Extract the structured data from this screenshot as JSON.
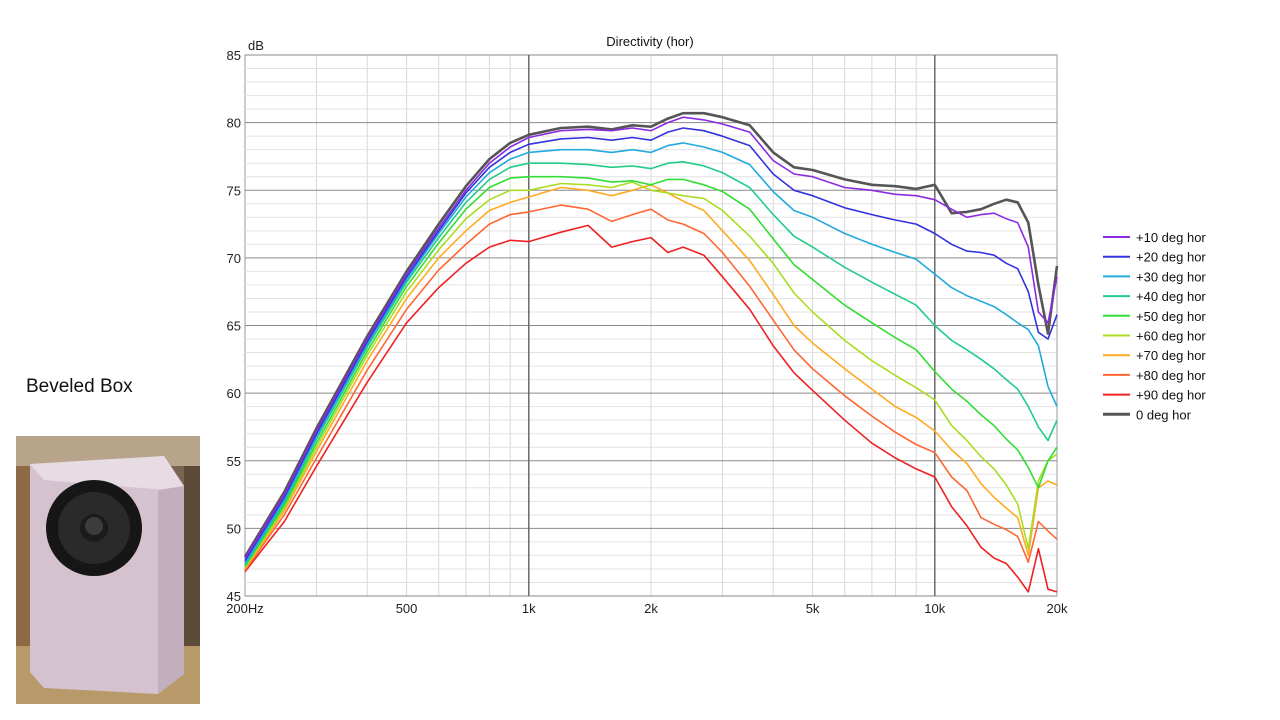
{
  "caption": "Beveled Box",
  "photo": {
    "icon": "beveled-speaker-box-photo",
    "box_color": "#d8c8d4"
  },
  "chart_data": {
    "type": "line",
    "title": "Directivity (hor)",
    "ylabel": "dB",
    "xlabel": "",
    "xscale": "log",
    "xlim": [
      200,
      20000
    ],
    "ylim": [
      45,
      85
    ],
    "grid": true,
    "legend_position": "right",
    "x_ticks": [
      {
        "value": 200,
        "label": "200Hz"
      },
      {
        "value": 500,
        "label": "500"
      },
      {
        "value": 1000,
        "label": "1k"
      },
      {
        "value": 2000,
        "label": "2k"
      },
      {
        "value": 5000,
        "label": "5k"
      },
      {
        "value": 10000,
        "label": "10k"
      },
      {
        "value": 20000,
        "label": "20k"
      }
    ],
    "y_ticks": [
      45,
      50,
      55,
      60,
      65,
      70,
      75,
      80,
      85
    ],
    "x": [
      200,
      250,
      300,
      400,
      500,
      600,
      700,
      800,
      900,
      1000,
      1200,
      1400,
      1600,
      1800,
      2000,
      2200,
      2400,
      2700,
      3000,
      3500,
      4000,
      4500,
      5000,
      6000,
      7000,
      8000,
      9000,
      10000,
      11000,
      12000,
      13000,
      14000,
      15000,
      16000,
      17000,
      18000,
      19000,
      20000
    ],
    "series": [
      {
        "name": "+10 deg hor",
        "color": "#8a2be2",
        "values": [
          47.8,
          52.5,
          57.2,
          64.0,
          68.8,
          72.2,
          75.0,
          77.0,
          78.2,
          78.9,
          79.4,
          79.5,
          79.4,
          79.6,
          79.4,
          80.0,
          80.4,
          80.2,
          79.9,
          79.3,
          77.2,
          76.2,
          76.0,
          75.2,
          75.0,
          74.7,
          74.6,
          74.3,
          73.6,
          73.0,
          73.2,
          73.3,
          72.9,
          72.6,
          70.8,
          66.0,
          65.2,
          68.6
        ]
      },
      {
        "name": "+20 deg hor",
        "color": "#3333dd",
        "values": [
          47.6,
          52.3,
          57.0,
          63.8,
          68.6,
          72.0,
          74.8,
          76.7,
          77.8,
          78.4,
          78.8,
          78.9,
          78.7,
          78.9,
          78.7,
          79.3,
          79.6,
          79.4,
          79.0,
          78.3,
          76.2,
          75.0,
          74.6,
          73.7,
          73.2,
          72.8,
          72.5,
          71.8,
          71.0,
          70.5,
          70.4,
          70.2,
          69.6,
          69.2,
          67.5,
          64.5,
          64.0,
          65.8
        ]
      },
      {
        "name": "+30 deg hor",
        "color": "#22aadd",
        "values": [
          47.4,
          52.1,
          56.8,
          63.6,
          68.4,
          71.8,
          74.5,
          76.3,
          77.3,
          77.8,
          78.0,
          78.0,
          77.8,
          78.0,
          77.8,
          78.3,
          78.5,
          78.2,
          77.8,
          76.9,
          74.9,
          73.5,
          73.0,
          71.8,
          71.0,
          70.4,
          69.9,
          68.8,
          67.8,
          67.2,
          66.8,
          66.4,
          65.8,
          65.2,
          64.7,
          63.5,
          60.5,
          59.0
        ]
      },
      {
        "name": "+40 deg hor",
        "color": "#22cc88",
        "values": [
          47.3,
          51.9,
          56.6,
          63.4,
          68.2,
          71.5,
          74.1,
          75.8,
          76.7,
          77.0,
          77.0,
          76.9,
          76.7,
          76.8,
          76.6,
          77.0,
          77.1,
          76.8,
          76.3,
          75.2,
          73.2,
          71.6,
          70.8,
          69.3,
          68.2,
          67.3,
          66.5,
          65.0,
          63.9,
          63.2,
          62.5,
          61.8,
          61.0,
          60.3,
          59.0,
          57.5,
          56.5,
          58.0
        ]
      },
      {
        "name": "+50 deg hor",
        "color": "#33dd33",
        "values": [
          47.2,
          51.7,
          56.3,
          63.1,
          67.9,
          71.1,
          73.6,
          75.2,
          75.9,
          76.0,
          76.0,
          75.9,
          75.6,
          75.7,
          75.4,
          75.8,
          75.8,
          75.4,
          74.9,
          73.6,
          71.4,
          69.5,
          68.4,
          66.5,
          65.2,
          64.1,
          63.2,
          61.6,
          60.3,
          59.4,
          58.4,
          57.6,
          56.6,
          55.8,
          54.5,
          53.0,
          55.0,
          56.0
        ]
      },
      {
        "name": "+60 deg hor",
        "color": "#aadd22",
        "values": [
          47.1,
          51.5,
          56.0,
          62.8,
          67.5,
          70.6,
          72.9,
          74.3,
          75.0,
          75.0,
          75.5,
          75.4,
          75.2,
          75.6,
          75.0,
          74.8,
          74.6,
          74.4,
          73.5,
          71.6,
          69.6,
          67.4,
          66.0,
          63.9,
          62.4,
          61.3,
          60.4,
          59.5,
          57.6,
          56.5,
          55.3,
          54.4,
          53.2,
          51.8,
          48.5,
          53.5,
          55.0,
          55.5
        ]
      },
      {
        "name": "+70 deg hor",
        "color": "#ffaa22",
        "values": [
          47.0,
          51.3,
          55.7,
          62.4,
          67.0,
          70.0,
          72.0,
          73.5,
          74.1,
          74.5,
          75.2,
          75.0,
          74.6,
          75.0,
          75.4,
          74.8,
          74.2,
          73.5,
          72.0,
          69.8,
          67.3,
          65.0,
          63.7,
          61.8,
          60.3,
          59.0,
          58.2,
          57.2,
          55.8,
          54.8,
          53.3,
          52.3,
          51.5,
          50.8,
          48.0,
          53.0,
          53.5,
          53.2
        ]
      },
      {
        "name": "+80 deg hor",
        "color": "#ff6633",
        "values": [
          46.9,
          51.0,
          55.2,
          61.7,
          66.2,
          69.1,
          71.0,
          72.5,
          73.2,
          73.4,
          73.9,
          73.6,
          72.7,
          73.2,
          73.6,
          72.8,
          72.5,
          71.8,
          70.4,
          67.9,
          65.4,
          63.2,
          61.8,
          59.8,
          58.3,
          57.1,
          56.2,
          55.6,
          53.8,
          52.8,
          50.8,
          50.3,
          49.9,
          49.4,
          47.5,
          50.5,
          49.8,
          49.2
        ]
      },
      {
        "name": "+90 deg hor",
        "color": "#ee2222",
        "values": [
          46.8,
          50.5,
          54.6,
          60.8,
          65.2,
          67.8,
          69.6,
          70.8,
          71.3,
          71.2,
          71.9,
          72.4,
          70.8,
          71.2,
          71.5,
          70.4,
          70.8,
          70.2,
          68.6,
          66.2,
          63.5,
          61.5,
          60.2,
          58.0,
          56.3,
          55.2,
          54.4,
          53.8,
          51.6,
          50.2,
          48.6,
          47.8,
          47.4,
          46.4,
          45.3,
          48.5,
          45.5,
          45.3
        ]
      },
      {
        "name": "0 deg hor",
        "color": "#555555",
        "values": [
          47.9,
          52.7,
          57.4,
          64.2,
          69.0,
          72.5,
          75.3,
          77.3,
          78.5,
          79.1,
          79.6,
          79.7,
          79.5,
          79.8,
          79.7,
          80.3,
          80.7,
          80.7,
          80.4,
          79.8,
          77.8,
          76.7,
          76.5,
          75.8,
          75.4,
          75.3,
          75.1,
          75.4,
          73.3,
          73.4,
          73.6,
          74.0,
          74.3,
          74.1,
          72.6,
          68.0,
          64.4,
          69.4
        ]
      }
    ]
  }
}
